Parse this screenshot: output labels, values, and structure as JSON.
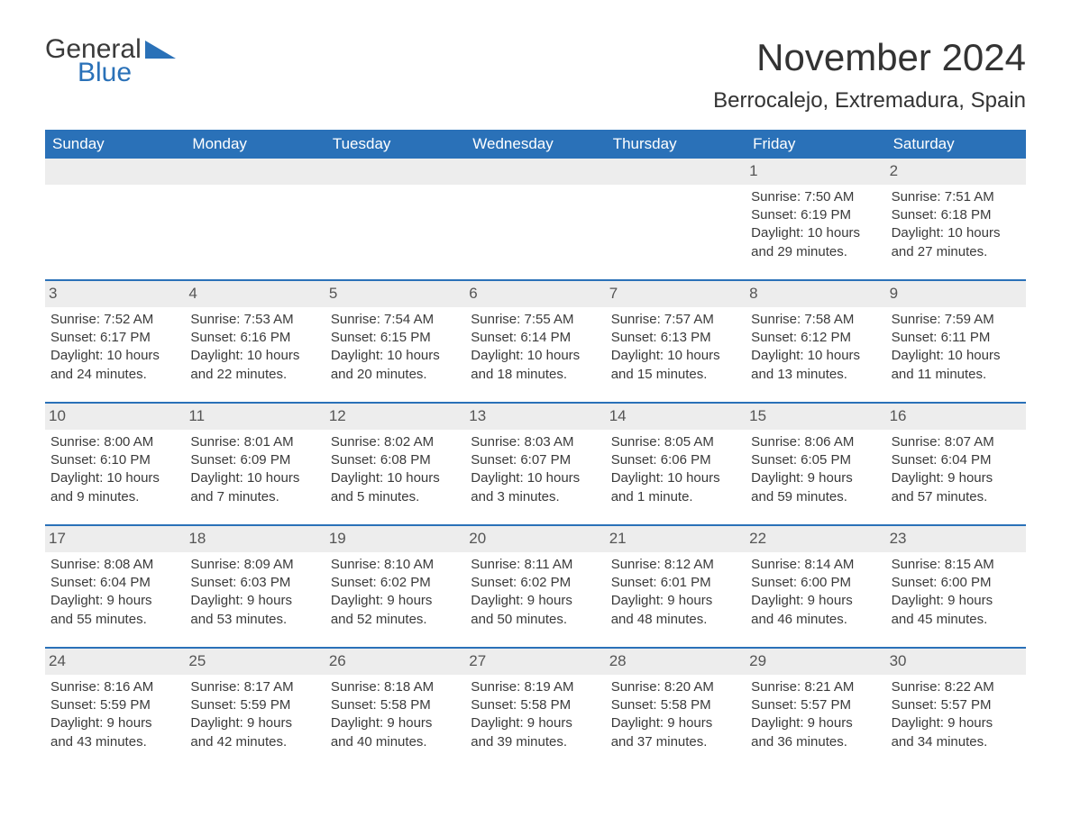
{
  "logo": {
    "general": "General",
    "blue": "Blue"
  },
  "header": {
    "month_title": "November 2024",
    "location": "Berrocalejo, Extremadura, Spain"
  },
  "colors": {
    "brand_blue": "#2a71b8",
    "header_bg": "#2a71b8",
    "daynum_bg": "#ededed",
    "text": "#3a3a3a",
    "page_bg": "#ffffff"
  },
  "weekdays": [
    "Sunday",
    "Monday",
    "Tuesday",
    "Wednesday",
    "Thursday",
    "Friday",
    "Saturday"
  ],
  "weeks": [
    [
      {
        "empty": true
      },
      {
        "empty": true
      },
      {
        "empty": true
      },
      {
        "empty": true
      },
      {
        "empty": true
      },
      {
        "day": "1",
        "sunrise": "Sunrise: 7:50 AM",
        "sunset": "Sunset: 6:19 PM",
        "dl1": "Daylight: 10 hours",
        "dl2": "and 29 minutes."
      },
      {
        "day": "2",
        "sunrise": "Sunrise: 7:51 AM",
        "sunset": "Sunset: 6:18 PM",
        "dl1": "Daylight: 10 hours",
        "dl2": "and 27 minutes."
      }
    ],
    [
      {
        "day": "3",
        "sunrise": "Sunrise: 7:52 AM",
        "sunset": "Sunset: 6:17 PM",
        "dl1": "Daylight: 10 hours",
        "dl2": "and 24 minutes."
      },
      {
        "day": "4",
        "sunrise": "Sunrise: 7:53 AM",
        "sunset": "Sunset: 6:16 PM",
        "dl1": "Daylight: 10 hours",
        "dl2": "and 22 minutes."
      },
      {
        "day": "5",
        "sunrise": "Sunrise: 7:54 AM",
        "sunset": "Sunset: 6:15 PM",
        "dl1": "Daylight: 10 hours",
        "dl2": "and 20 minutes."
      },
      {
        "day": "6",
        "sunrise": "Sunrise: 7:55 AM",
        "sunset": "Sunset: 6:14 PM",
        "dl1": "Daylight: 10 hours",
        "dl2": "and 18 minutes."
      },
      {
        "day": "7",
        "sunrise": "Sunrise: 7:57 AM",
        "sunset": "Sunset: 6:13 PM",
        "dl1": "Daylight: 10 hours",
        "dl2": "and 15 minutes."
      },
      {
        "day": "8",
        "sunrise": "Sunrise: 7:58 AM",
        "sunset": "Sunset: 6:12 PM",
        "dl1": "Daylight: 10 hours",
        "dl2": "and 13 minutes."
      },
      {
        "day": "9",
        "sunrise": "Sunrise: 7:59 AM",
        "sunset": "Sunset: 6:11 PM",
        "dl1": "Daylight: 10 hours",
        "dl2": "and 11 minutes."
      }
    ],
    [
      {
        "day": "10",
        "sunrise": "Sunrise: 8:00 AM",
        "sunset": "Sunset: 6:10 PM",
        "dl1": "Daylight: 10 hours",
        "dl2": "and 9 minutes."
      },
      {
        "day": "11",
        "sunrise": "Sunrise: 8:01 AM",
        "sunset": "Sunset: 6:09 PM",
        "dl1": "Daylight: 10 hours",
        "dl2": "and 7 minutes."
      },
      {
        "day": "12",
        "sunrise": "Sunrise: 8:02 AM",
        "sunset": "Sunset: 6:08 PM",
        "dl1": "Daylight: 10 hours",
        "dl2": "and 5 minutes."
      },
      {
        "day": "13",
        "sunrise": "Sunrise: 8:03 AM",
        "sunset": "Sunset: 6:07 PM",
        "dl1": "Daylight: 10 hours",
        "dl2": "and 3 minutes."
      },
      {
        "day": "14",
        "sunrise": "Sunrise: 8:05 AM",
        "sunset": "Sunset: 6:06 PM",
        "dl1": "Daylight: 10 hours",
        "dl2": "and 1 minute."
      },
      {
        "day": "15",
        "sunrise": "Sunrise: 8:06 AM",
        "sunset": "Sunset: 6:05 PM",
        "dl1": "Daylight: 9 hours",
        "dl2": "and 59 minutes."
      },
      {
        "day": "16",
        "sunrise": "Sunrise: 8:07 AM",
        "sunset": "Sunset: 6:04 PM",
        "dl1": "Daylight: 9 hours",
        "dl2": "and 57 minutes."
      }
    ],
    [
      {
        "day": "17",
        "sunrise": "Sunrise: 8:08 AM",
        "sunset": "Sunset: 6:04 PM",
        "dl1": "Daylight: 9 hours",
        "dl2": "and 55 minutes."
      },
      {
        "day": "18",
        "sunrise": "Sunrise: 8:09 AM",
        "sunset": "Sunset: 6:03 PM",
        "dl1": "Daylight: 9 hours",
        "dl2": "and 53 minutes."
      },
      {
        "day": "19",
        "sunrise": "Sunrise: 8:10 AM",
        "sunset": "Sunset: 6:02 PM",
        "dl1": "Daylight: 9 hours",
        "dl2": "and 52 minutes."
      },
      {
        "day": "20",
        "sunrise": "Sunrise: 8:11 AM",
        "sunset": "Sunset: 6:02 PM",
        "dl1": "Daylight: 9 hours",
        "dl2": "and 50 minutes."
      },
      {
        "day": "21",
        "sunrise": "Sunrise: 8:12 AM",
        "sunset": "Sunset: 6:01 PM",
        "dl1": "Daylight: 9 hours",
        "dl2": "and 48 minutes."
      },
      {
        "day": "22",
        "sunrise": "Sunrise: 8:14 AM",
        "sunset": "Sunset: 6:00 PM",
        "dl1": "Daylight: 9 hours",
        "dl2": "and 46 minutes."
      },
      {
        "day": "23",
        "sunrise": "Sunrise: 8:15 AM",
        "sunset": "Sunset: 6:00 PM",
        "dl1": "Daylight: 9 hours",
        "dl2": "and 45 minutes."
      }
    ],
    [
      {
        "day": "24",
        "sunrise": "Sunrise: 8:16 AM",
        "sunset": "Sunset: 5:59 PM",
        "dl1": "Daylight: 9 hours",
        "dl2": "and 43 minutes."
      },
      {
        "day": "25",
        "sunrise": "Sunrise: 8:17 AM",
        "sunset": "Sunset: 5:59 PM",
        "dl1": "Daylight: 9 hours",
        "dl2": "and 42 minutes."
      },
      {
        "day": "26",
        "sunrise": "Sunrise: 8:18 AM",
        "sunset": "Sunset: 5:58 PM",
        "dl1": "Daylight: 9 hours",
        "dl2": "and 40 minutes."
      },
      {
        "day": "27",
        "sunrise": "Sunrise: 8:19 AM",
        "sunset": "Sunset: 5:58 PM",
        "dl1": "Daylight: 9 hours",
        "dl2": "and 39 minutes."
      },
      {
        "day": "28",
        "sunrise": "Sunrise: 8:20 AM",
        "sunset": "Sunset: 5:58 PM",
        "dl1": "Daylight: 9 hours",
        "dl2": "and 37 minutes."
      },
      {
        "day": "29",
        "sunrise": "Sunrise: 8:21 AM",
        "sunset": "Sunset: 5:57 PM",
        "dl1": "Daylight: 9 hours",
        "dl2": "and 36 minutes."
      },
      {
        "day": "30",
        "sunrise": "Sunrise: 8:22 AM",
        "sunset": "Sunset: 5:57 PM",
        "dl1": "Daylight: 9 hours",
        "dl2": "and 34 minutes."
      }
    ]
  ]
}
